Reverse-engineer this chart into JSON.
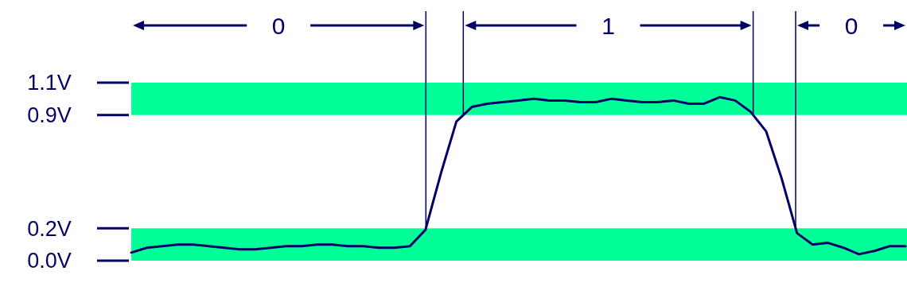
{
  "chart_data": {
    "type": "line",
    "categories": [
      null,
      null,
      null,
      null,
      null,
      null,
      null,
      null,
      null,
      null,
      null,
      null,
      null,
      null,
      null,
      null,
      null,
      null,
      null,
      null,
      null,
      null,
      null,
      null,
      null,
      null,
      null,
      null,
      null,
      null,
      null,
      null,
      null,
      null,
      null,
      null,
      null,
      null,
      null,
      null,
      null,
      null,
      null,
      null,
      null,
      null,
      null,
      null,
      null,
      null,
      null
    ],
    "series": [
      {
        "color": "#000066",
        "values": [
          0.05,
          0.08,
          0.09,
          0.1,
          0.1,
          0.09,
          0.08,
          0.07,
          0.07,
          0.08,
          0.09,
          0.09,
          0.1,
          0.1,
          0.09,
          0.09,
          0.08,
          0.08,
          0.09,
          0.19,
          0.54,
          0.86,
          0.95,
          0.97,
          0.98,
          0.99,
          1.0,
          0.99,
          0.99,
          0.98,
          0.98,
          1.0,
          0.99,
          0.98,
          0.98,
          0.99,
          0.97,
          0.97,
          1.01,
          0.99,
          0.92,
          0.8,
          0.51,
          0.17,
          0.1,
          0.11,
          0.08,
          0.04,
          0.06,
          0.09,
          0.09
        ]
      }
    ],
    "ylim": [
      0,
      1.1
    ],
    "yticks": [
      {
        "value": 0,
        "label": "0.0V"
      },
      {
        "value": 0.2,
        "label": "0.2V"
      },
      {
        "value": 0.9,
        "label": "0.9V"
      },
      {
        "value": 1.1,
        "label": "1.1V"
      }
    ],
    "tick_labels": "y",
    "bands": [
      {
        "axis": "y",
        "from": 0,
        "to": 0.2,
        "color": "#00ff99"
      },
      {
        "axis": "y",
        "from": 0.9,
        "to": 1.1,
        "color": "#00ff99"
      }
    ],
    "annotations": [
      "0",
      "1",
      "0"
    ]
  }
}
